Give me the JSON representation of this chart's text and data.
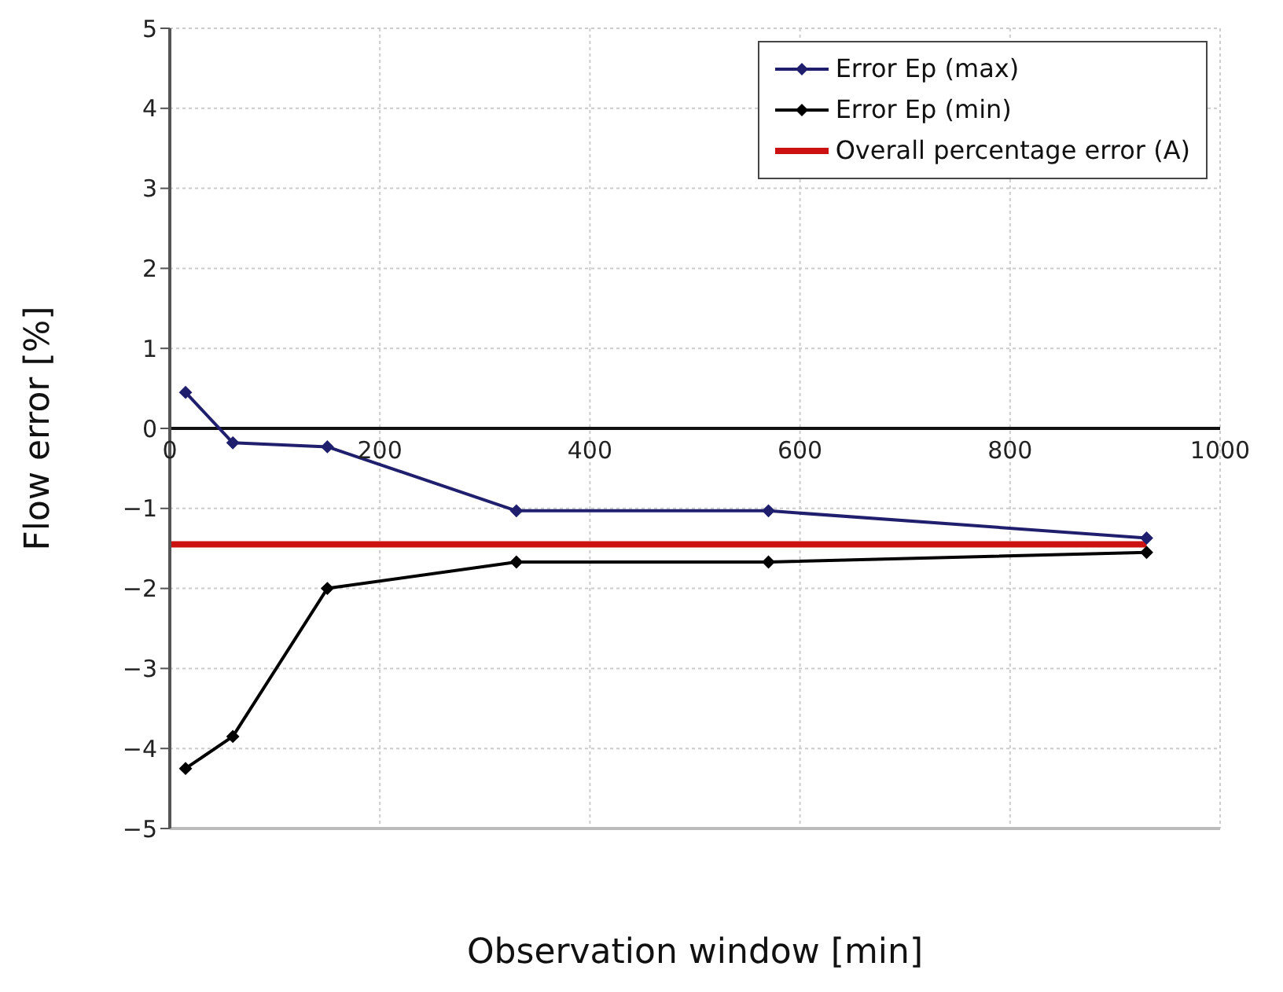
{
  "chart_data": {
    "type": "line",
    "xlabel": "Observation window [min]",
    "ylabel": "Flow error [%]",
    "xlim": [
      0,
      1000
    ],
    "xticks": [
      0,
      200,
      400,
      600,
      800,
      1000
    ],
    "ylim": [
      -5,
      5
    ],
    "yticks": [
      -5,
      -4,
      -3,
      -2,
      -1,
      0,
      1,
      2,
      3,
      4,
      5
    ],
    "grid": true,
    "legend": "top right",
    "marker": "diamond",
    "series": [
      {
        "name": "Error Ep (max)",
        "color": "#1f1f6e",
        "x": [
          15,
          60,
          150,
          330,
          570,
          930
        ],
        "values": [
          0.45,
          -0.18,
          -0.23,
          -1.03,
          -1.03,
          -1.37
        ]
      },
      {
        "name": "Error Ep (min)",
        "color": "#000000",
        "x": [
          15,
          60,
          150,
          330,
          570,
          930
        ],
        "values": [
          -4.25,
          -3.85,
          -2.0,
          -1.67,
          -1.67,
          -1.55
        ]
      },
      {
        "name": "Overall percentage error (A)",
        "color": "#cc1111",
        "marker": "none",
        "x": [
          0,
          930
        ],
        "values": [
          -1.45,
          -1.45
        ]
      }
    ]
  }
}
